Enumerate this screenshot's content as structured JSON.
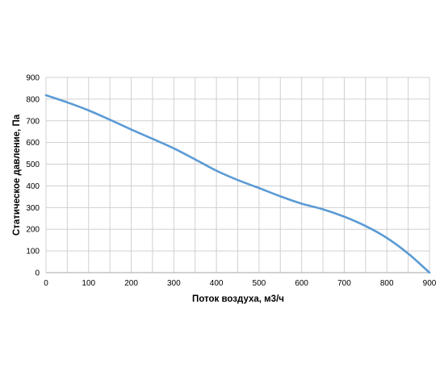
{
  "chart_data": {
    "type": "line",
    "title": "",
    "xlabel": "Поток воздуха, м3/ч",
    "ylabel": "Статическое давление, Па",
    "xlim": [
      0,
      900
    ],
    "ylim": [
      0,
      900
    ],
    "xticks": [
      0,
      100,
      200,
      300,
      400,
      500,
      600,
      700,
      800,
      900
    ],
    "yticks": [
      0,
      100,
      200,
      300,
      400,
      500,
      600,
      700,
      800,
      900
    ],
    "x_minor_step": 50,
    "grid": true,
    "legend": "none",
    "series": [
      {
        "color": "#5b9bd5",
        "x": [
          0,
          50,
          100,
          150,
          200,
          250,
          300,
          350,
          400,
          450,
          500,
          550,
          600,
          650,
          700,
          750,
          800,
          850,
          900
        ],
        "y": [
          818,
          785,
          748,
          705,
          660,
          617,
          573,
          522,
          470,
          427,
          390,
          352,
          318,
          292,
          258,
          215,
          160,
          88,
          0
        ]
      }
    ]
  }
}
